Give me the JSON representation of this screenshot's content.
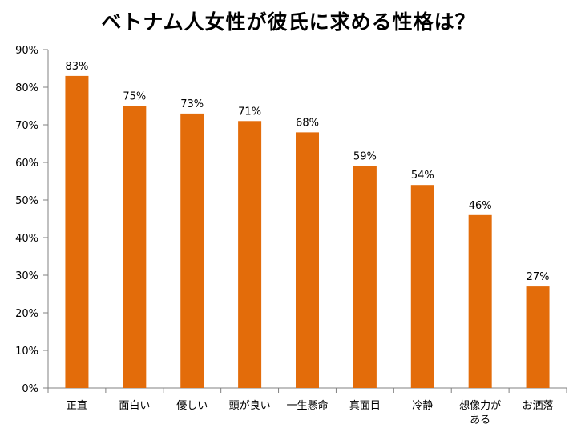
{
  "chart_data": {
    "type": "bar",
    "title": "ベトナム人女性が彼氏に求める性格は？",
    "xlabel": "",
    "ylabel": "",
    "categories": [
      "正直",
      "面白い",
      "優しい",
      "頭が良い",
      "一生懸命",
      "真面目",
      "冷静",
      "想像力がある",
      "お洒落"
    ],
    "category_lines": [
      [
        "正直"
      ],
      [
        "面白い"
      ],
      [
        "優しい"
      ],
      [
        "頭が良い"
      ],
      [
        "一生懸命"
      ],
      [
        "真面目"
      ],
      [
        "冷静"
      ],
      [
        "想像力が",
        "ある"
      ],
      [
        "お洒落"
      ]
    ],
    "values": [
      83,
      75,
      73,
      71,
      68,
      59,
      54,
      46,
      27
    ],
    "data_labels": [
      "83%",
      "75%",
      "73%",
      "71%",
      "68%",
      "59%",
      "54%",
      "46%",
      "27%"
    ],
    "ylim": [
      0,
      90
    ],
    "yticks": [
      0,
      10,
      20,
      30,
      40,
      50,
      60,
      70,
      80,
      90
    ],
    "ytick_labels": [
      "0%",
      "10%",
      "20%",
      "30%",
      "40%",
      "50%",
      "60%",
      "70%",
      "80%",
      "90%"
    ],
    "grid": false,
    "legend": "none",
    "bar_color": "#E36C0A"
  }
}
